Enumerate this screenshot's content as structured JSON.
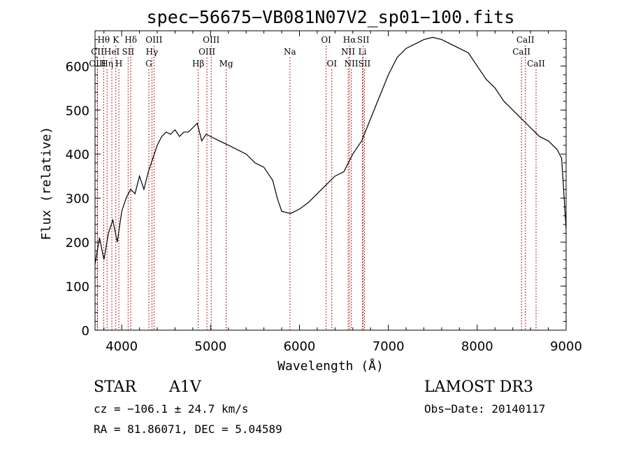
{
  "chart_data": {
    "type": "line",
    "title": "spec−56675−VB081N07V2_sp01−100.fits",
    "xlabel": "Wavelength (Å)",
    "ylabel": "Flux (relative)",
    "xlim": [
      3700,
      9000
    ],
    "ylim": [
      0,
      680
    ],
    "x_ticks": [
      4000,
      5000,
      6000,
      7000,
      8000,
      9000
    ],
    "y_ticks": [
      0,
      100,
      200,
      300,
      400,
      500,
      600
    ],
    "series": [
      {
        "name": "flux",
        "color": "#000000",
        "x": [
          3700,
          3750,
          3800,
          3850,
          3900,
          3950,
          4000,
          4050,
          4100,
          4150,
          4200,
          4250,
          4300,
          4350,
          4400,
          4450,
          4500,
          4550,
          4600,
          4650,
          4700,
          4750,
          4800,
          4850,
          4900,
          4950,
          5000,
          5100,
          5200,
          5300,
          5400,
          5500,
          5600,
          5700,
          5750,
          5800,
          5900,
          6000,
          6100,
          6200,
          6300,
          6400,
          6500,
          6550,
          6600,
          6700,
          6800,
          6900,
          7000,
          7100,
          7200,
          7300,
          7400,
          7500,
          7600,
          7700,
          7800,
          7900,
          8000,
          8100,
          8200,
          8300,
          8400,
          8500,
          8600,
          8700,
          8800,
          8900,
          8950,
          9000
        ],
        "y": [
          150,
          210,
          160,
          220,
          250,
          200,
          270,
          300,
          320,
          310,
          350,
          320,
          360,
          390,
          420,
          440,
          450,
          445,
          455,
          440,
          450,
          450,
          460,
          470,
          430,
          445,
          440,
          430,
          420,
          410,
          400,
          380,
          370,
          340,
          300,
          270,
          265,
          275,
          290,
          310,
          330,
          350,
          360,
          380,
          400,
          430,
          480,
          530,
          580,
          620,
          640,
          650,
          660,
          665,
          660,
          650,
          640,
          630,
          600,
          570,
          550,
          520,
          500,
          480,
          460,
          440,
          430,
          410,
          390,
          230
        ]
      }
    ],
    "line_markers": [
      {
        "label": "Hθ",
        "x": 3797,
        "row": 1
      },
      {
        "label": "K",
        "x": 3934,
        "row": 1
      },
      {
        "label": "Hδ",
        "x": 4102,
        "row": 1
      },
      {
        "label": "OIII",
        "x": 4363,
        "row": 1
      },
      {
        "label": "OIII",
        "x": 5007,
        "row": 1
      },
      {
        "label": "OI",
        "x": 6300,
        "row": 1
      },
      {
        "label": "Hα",
        "x": 6563,
        "row": 1
      },
      {
        "label": "SII",
        "x": 6717,
        "row": 1
      },
      {
        "label": "CaII",
        "x": 8542,
        "row": 1
      },
      {
        "label": "CII",
        "x": 3727,
        "row": 2
      },
      {
        "label": "HeI",
        "x": 3889,
        "row": 2
      },
      {
        "label": "SII",
        "x": 4072,
        "row": 2
      },
      {
        "label": "Hγ",
        "x": 4340,
        "row": 2
      },
      {
        "label": "OIII",
        "x": 4959,
        "row": 2
      },
      {
        "label": "Na",
        "x": 5893,
        "row": 2
      },
      {
        "label": "NII",
        "x": 6548,
        "row": 2
      },
      {
        "label": "Li",
        "x": 6708,
        "row": 2
      },
      {
        "label": "CaII",
        "x": 8498,
        "row": 2
      },
      {
        "label": "OIII",
        "x": 3727,
        "row": 3
      },
      {
        "label": "Hη",
        "x": 3835,
        "row": 3
      },
      {
        "label": "H",
        "x": 3968,
        "row": 3
      },
      {
        "label": "G",
        "x": 4305,
        "row": 3
      },
      {
        "label": "Hβ",
        "x": 4861,
        "row": 3
      },
      {
        "label": "Mg",
        "x": 5175,
        "row": 3
      },
      {
        "label": "OI",
        "x": 6364,
        "row": 3
      },
      {
        "label": "NII",
        "x": 6583,
        "row": 3
      },
      {
        "label": "SII",
        "x": 6731,
        "row": 3
      },
      {
        "label": "CaII",
        "x": 8662,
        "row": 3
      }
    ]
  },
  "info": {
    "object_type": "STAR",
    "subclass": "A1V",
    "survey": "LAMOST DR3",
    "cz": "cz = −106.1 ± 24.7 km/s",
    "obs_date": "Obs−Date: 20140117",
    "coords": "RA =  81.86071, DEC =   5.04589"
  }
}
